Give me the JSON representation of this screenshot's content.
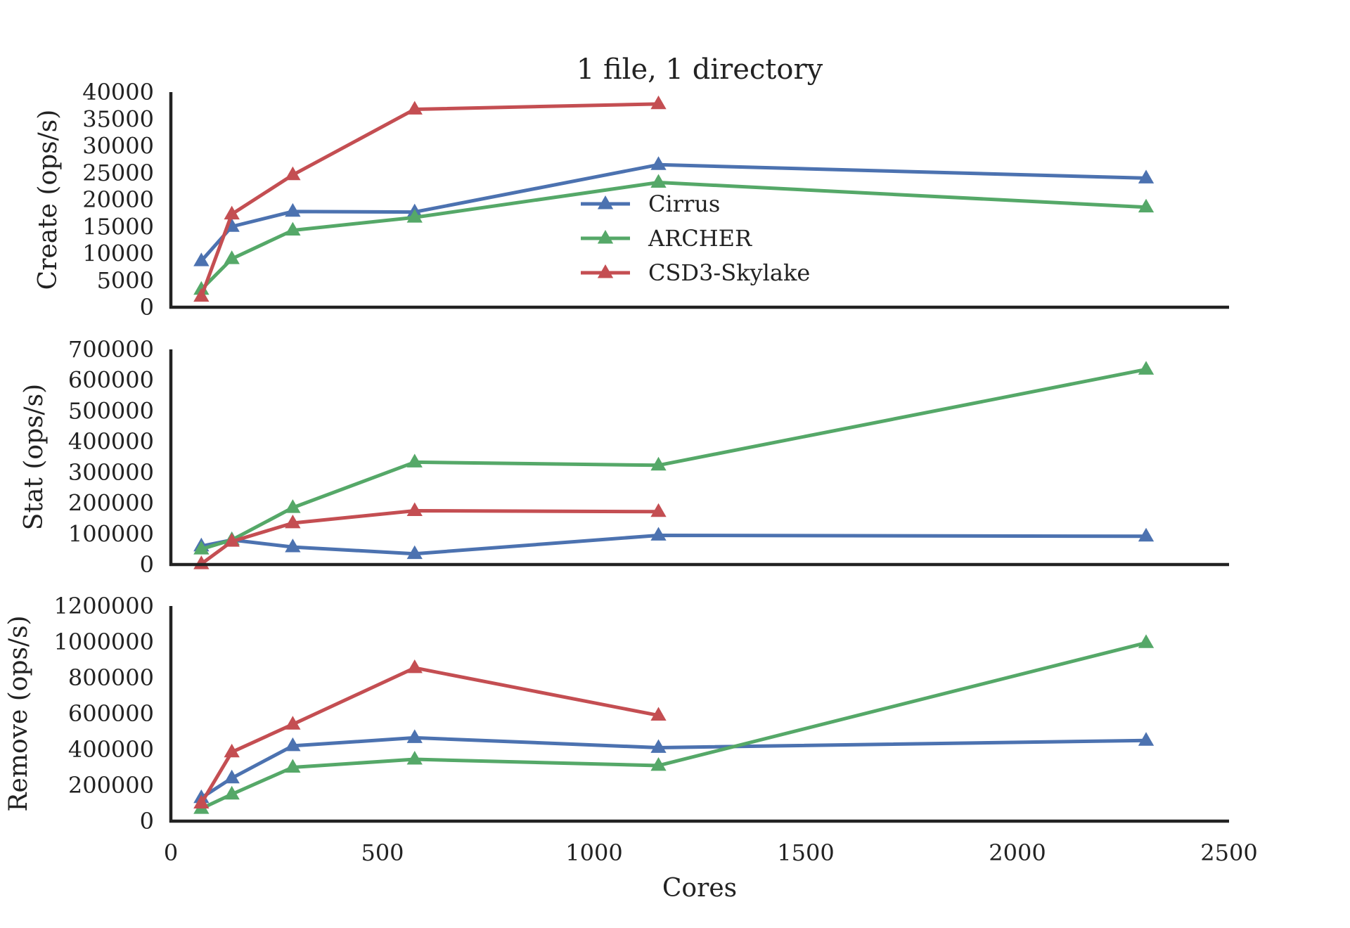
{
  "chart_data": {
    "type": "line",
    "title": "1 file, 1 directory",
    "xlabel": "Cores",
    "xlim": [
      0,
      2500
    ],
    "xticks": [
      0,
      500,
      1000,
      1500,
      2000,
      2500
    ],
    "legend_position": "center",
    "series_styles": [
      {
        "name": "Cirrus",
        "color": "#4c72b0",
        "marker": "triangle-up"
      },
      {
        "name": "ARCHER",
        "color": "#55a868",
        "marker": "triangle-up"
      },
      {
        "name": "CSD3-Skylake",
        "color": "#c44e52",
        "marker": "triangle-up"
      }
    ],
    "panels": [
      {
        "ylabel": "Create (ops/s)",
        "ylim": [
          0,
          40000
        ],
        "yticks": [
          0,
          5000,
          10000,
          15000,
          20000,
          25000,
          30000,
          35000,
          40000
        ],
        "show_legend": true,
        "series": [
          {
            "name": "Cirrus",
            "x": [
              72,
              144,
              288,
              576,
              1152,
              2304
            ],
            "values": [
              8600,
              15000,
              17800,
              17700,
              26500,
              24000
            ]
          },
          {
            "name": "ARCHER",
            "x": [
              72,
              144,
              288,
              576,
              1152,
              2304
            ],
            "values": [
              3300,
              9000,
              14300,
              16700,
              23200,
              18600
            ]
          },
          {
            "name": "CSD3-Skylake",
            "x": [
              72,
              144,
              288,
              576,
              1152
            ],
            "values": [
              2000,
              17300,
              24600,
              36800,
              37800
            ]
          }
        ]
      },
      {
        "ylabel": "Stat (ops/s)",
        "ylim": [
          0,
          700000
        ],
        "yticks": [
          0,
          100000,
          200000,
          300000,
          400000,
          500000,
          600000,
          700000
        ],
        "show_legend": false,
        "series": [
          {
            "name": "Cirrus",
            "x": [
              72,
              144,
              288,
              576,
              1152,
              2304
            ],
            "values": [
              60000,
              80000,
              57000,
              35000,
              95000,
              92000
            ]
          },
          {
            "name": "ARCHER",
            "x": [
              72,
              144,
              288,
              576,
              1152,
              2304
            ],
            "values": [
              50000,
              80000,
              185000,
              333000,
              323000,
              635000
            ]
          },
          {
            "name": "CSD3-Skylake",
            "x": [
              72,
              144,
              288,
              576,
              1152
            ],
            "values": [
              2000,
              75000,
              135000,
              175000,
              172000
            ]
          }
        ]
      },
      {
        "ylabel": "Remove (ops/s)",
        "ylim": [
          0,
          1200000
        ],
        "yticks": [
          0,
          200000,
          400000,
          600000,
          800000,
          1000000,
          1200000
        ],
        "show_legend": false,
        "series": [
          {
            "name": "Cirrus",
            "x": [
              72,
              144,
              288,
              576,
              1152,
              2304
            ],
            "values": [
              130000,
              240000,
              420000,
              465000,
              410000,
              450000
            ]
          },
          {
            "name": "ARCHER",
            "x": [
              72,
              144,
              288,
              576,
              1152,
              2304
            ],
            "values": [
              70000,
              150000,
              300000,
              345000,
              310000,
              995000
            ]
          },
          {
            "name": "CSD3-Skylake",
            "x": [
              72,
              144,
              288,
              576,
              1152
            ],
            "values": [
              100000,
              385000,
              540000,
              855000,
              590000
            ]
          }
        ]
      }
    ]
  }
}
